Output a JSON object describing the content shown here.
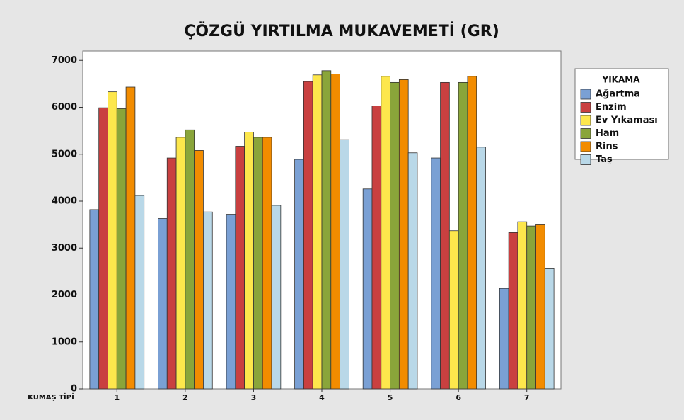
{
  "chart_data": {
    "type": "bar",
    "title": "ÇÖZGÜ YIRTILMA MUKAVEMETİ (GR)",
    "x_label": "KUMAŞ TİPİ",
    "legend_title": "YIKAMA",
    "categories": [
      "1",
      "2",
      "3",
      "4",
      "5",
      "6",
      "7"
    ],
    "series": [
      {
        "name": "Ağartma",
        "color": "#7aa0d4",
        "values": [
          3820,
          3630,
          3720,
          4890,
          4260,
          4920,
          2140
        ]
      },
      {
        "name": "Enzim",
        "color": "#c94040",
        "values": [
          5990,
          4920,
          5170,
          6550,
          6030,
          6530,
          3330
        ]
      },
      {
        "name": "Ev Yıkaması",
        "color": "#fde74c",
        "values": [
          6330,
          5360,
          5470,
          6690,
          6660,
          3370,
          3560
        ]
      },
      {
        "name": "Ham",
        "color": "#8aa53a",
        "values": [
          5970,
          5520,
          5360,
          6780,
          6530,
          6530,
          3470
        ]
      },
      {
        "name": "Rins",
        "color": "#f28c00",
        "values": [
          6430,
          5080,
          5360,
          6710,
          6590,
          6660,
          3510
        ]
      },
      {
        "name": "Taş",
        "color": "#b9d8e8",
        "values": [
          4120,
          3770,
          3910,
          5310,
          5030,
          5150,
          2560
        ]
      }
    ],
    "ylim": [
      0,
      7200
    ],
    "yticks": [
      0,
      1000,
      2000,
      3000,
      4000,
      5000,
      6000,
      7000
    ],
    "legend": "right"
  }
}
